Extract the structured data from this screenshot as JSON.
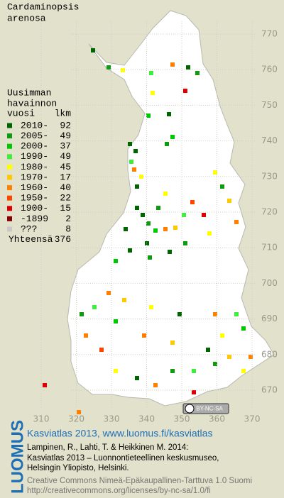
{
  "title_lines": [
    "Cardaminopsis",
    "arenosa"
  ],
  "legend": {
    "header_lines": [
      "Uusimman",
      "havainnon"
    ],
    "header_last": "vuosi",
    "count_header": "lkm",
    "rows": [
      {
        "label": "2010-",
        "count": 92,
        "color": "#006400"
      },
      {
        "label": "2005-",
        "count": 49,
        "color": "#109a10"
      },
      {
        "label": "2000-",
        "count": 37,
        "color": "#00c800"
      },
      {
        "label": "1990-",
        "count": 49,
        "color": "#40ec40"
      },
      {
        "label": "1980-",
        "count": 45,
        "color": "#ffff00"
      },
      {
        "label": "1970-",
        "count": 17,
        "color": "#ffc800"
      },
      {
        "label": "1960-",
        "count": 40,
        "color": "#ff8000"
      },
      {
        "label": "1950-",
        "count": 22,
        "color": "#ff4400"
      },
      {
        "label": "1900-",
        "count": 15,
        "color": "#dd0000"
      },
      {
        "label": "-1899",
        "count": 2,
        "color": "#880000"
      },
      {
        "label": "???",
        "count": 8,
        "color": "#c8c8c8"
      }
    ],
    "total_label": "Yhteensä",
    "total": 376
  },
  "grid": {
    "y_labels": [
      770,
      760,
      750,
      740,
      730,
      720,
      710,
      700,
      690,
      680,
      670
    ],
    "x_labels": [
      310,
      320,
      330,
      340,
      350,
      360,
      370
    ]
  },
  "badge": "BY-NC-SA",
  "footer": {
    "brand": "LUOMUS",
    "link": "Kasviatlas 2013, www.luomus.fi/kasviatlas",
    "citation": [
      "Lampinen, R., Lahti, T. & Heikkinen M. 2014:",
      "Kasviatlas 2013 – Luonnontieteellinen keskusmuseo,",
      "Helsingin Yliopisto, Helsinki."
    ],
    "license": [
      "Creative Commons Nimeä-Epäkaupallinen-Tarttuva 1.0 Suomi",
      "http://creativecommons.org/licenses/by-nc-sa/1.0/fi"
    ]
  }
}
